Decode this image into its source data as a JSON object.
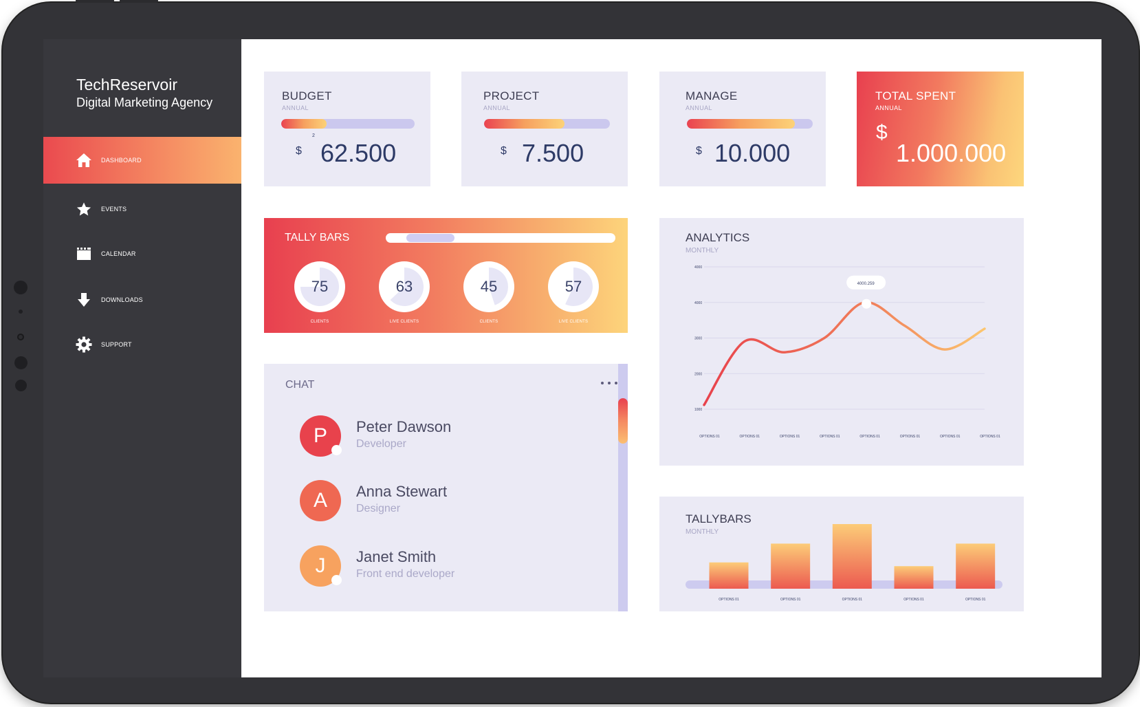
{
  "brand": {
    "name": "TechReservoir",
    "subtitle": "Digital Marketing Agency"
  },
  "nav": [
    {
      "label": "DASHBOARD",
      "icon": "home-icon",
      "active": true
    },
    {
      "label": "EVENTS",
      "icon": "star-icon",
      "active": false
    },
    {
      "label": "CALENDAR",
      "icon": "calendar-icon",
      "active": false
    },
    {
      "label": "DOWNLOADS",
      "icon": "download-icon",
      "active": false
    },
    {
      "label": "SUPPORT",
      "icon": "gear-icon",
      "active": false
    }
  ],
  "stats": [
    {
      "title": "BUDGET",
      "sub": "ANNUAL",
      "currency": "$",
      "value": "62.500",
      "progress": 0.34,
      "mini": "2"
    },
    {
      "title": "PROJECT",
      "sub": "ANNUAL",
      "currency": "$",
      "value": "7.500",
      "progress": 0.64
    },
    {
      "title": "MANAGE",
      "sub": "ANNUAL",
      "currency": "$",
      "value": "10.000",
      "progress": 0.86
    },
    {
      "title": "TOTAL SPENT",
      "sub": "ANNUAL",
      "currency": "$",
      "value": "1.000.000"
    }
  ],
  "tally": {
    "title": "TALLY BARS",
    "rings": [
      {
        "value": "75",
        "label": "CLIENTS",
        "pct": 0.75
      },
      {
        "value": "63",
        "label": "LIVE CLIENTS",
        "pct": 0.63
      },
      {
        "value": "45",
        "label": "CLIENTS",
        "pct": 0.45
      },
      {
        "value": "57",
        "label": "LIVE CLIENTS",
        "pct": 0.57
      }
    ]
  },
  "chat": {
    "title": "CHAT",
    "contacts": [
      {
        "initial": "P",
        "name": "Peter Dawson",
        "role": "Developer",
        "color": "#e8424c",
        "online": true
      },
      {
        "initial": "A",
        "name": "Anna Stewart",
        "role": "Designer",
        "color": "#ef6852",
        "online": false
      },
      {
        "initial": "J",
        "name": "Janet Smith",
        "role": "Front end developer",
        "color": "#f7a25f",
        "online": true
      }
    ]
  },
  "analytics": {
    "title": "ANALYTICS",
    "sub": "MONTHLY",
    "tooltip": "4000.259"
  },
  "tallybars": {
    "title": "TALLYBARS",
    "sub": "MONTHLY"
  },
  "chart_data": [
    {
      "type": "line",
      "title": "ANALYTICS",
      "subtitle": "MONTHLY",
      "x": [
        "OPTIONS 01",
        "OPTIONS 01",
        "OPTIONS 01",
        "OPTIONS 01",
        "OPTIONS 01",
        "OPTIONS 01",
        "OPTIONS 01",
        "OPTIONS 01"
      ],
      "y_ticks": [
        "4000",
        "4000",
        "3000",
        "2000",
        "1000"
      ],
      "series": [
        {
          "values": [
            1120,
            2900,
            2600,
            3000,
            4000,
            3350,
            2680,
            3260
          ]
        }
      ],
      "annotation": "4000.259",
      "grid": true,
      "colors": [
        "#e8424c",
        "#fbc36f"
      ]
    },
    {
      "type": "bar",
      "title": "TALLYBARS",
      "subtitle": "MONTHLY",
      "categories": [
        "OPTIONS 01",
        "OPTIONS 01",
        "OPTIONS 01",
        "OPTIONS 01",
        "OPTIONS 01"
      ],
      "values": [
        35,
        60,
        86,
        30,
        60
      ],
      "colors": [
        "#fccc78",
        "#ec5a50"
      ]
    }
  ]
}
